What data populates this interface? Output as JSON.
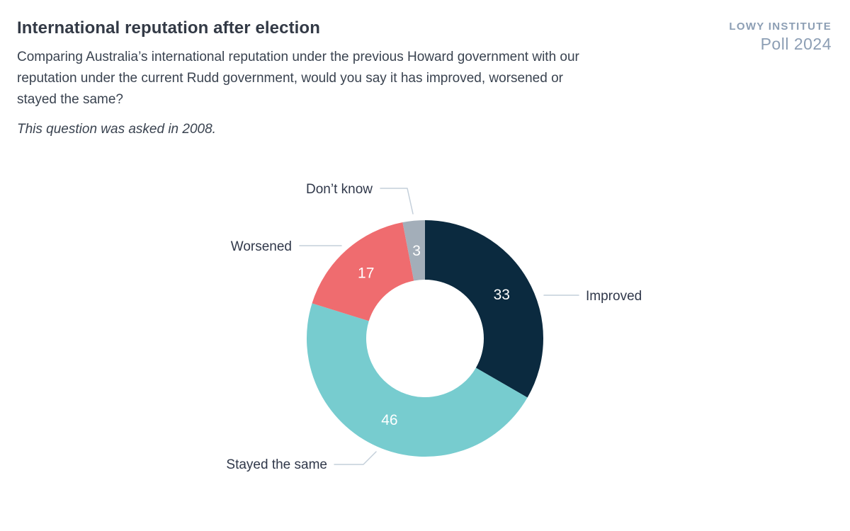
{
  "header": {
    "title": "International reputation after election",
    "question_lines": [
      "Comparing Australia’s international reputation under the previous Howard government with our",
      "reputation under the current Rudd government, would you say it has improved, worsened or",
      "stayed the same?"
    ],
    "note": "This question was asked in 2008."
  },
  "branding": {
    "line1": "LOWY INSTITUTE",
    "line2": "Poll 2024",
    "color": "#8c9eb4"
  },
  "chart_data": {
    "type": "pie",
    "subtype": "donut",
    "title": "International reputation after election",
    "unit": "percent",
    "start_angle_deg": 0,
    "direction": "clockwise",
    "value_labels": "inside-white",
    "legend_position": "outside-callouts",
    "segments": [
      {
        "label": "Improved",
        "value": 33,
        "color": "#0b2a3f"
      },
      {
        "label": "Stayed the same",
        "value": 46,
        "color": "#77cccf"
      },
      {
        "label": "Worsened",
        "value": 17,
        "color": "#ef6c6f"
      },
      {
        "label": "Don’t know",
        "value": 3,
        "color": "#a3aeb9"
      }
    ]
  }
}
